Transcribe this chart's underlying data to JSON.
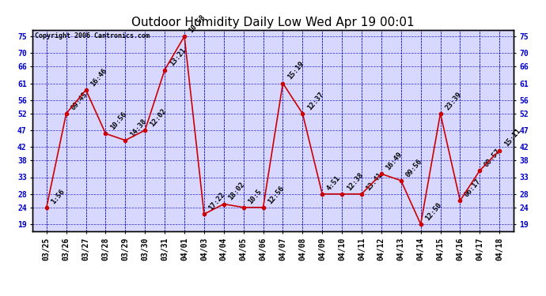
{
  "title": "Outdoor Humidity Daily Low Wed Apr 19 00:01",
  "copyright": "Copyright 2006 Cantronics.com",
  "x_labels": [
    "03/25",
    "03/26",
    "03/27",
    "03/28",
    "03/29",
    "03/30",
    "03/31",
    "04/01",
    "04/03",
    "04/04",
    "04/05",
    "04/06",
    "04/07",
    "04/08",
    "04/09",
    "04/10",
    "04/11",
    "04/12",
    "04/13",
    "04/14",
    "04/15",
    "04/16",
    "04/17",
    "04/18"
  ],
  "y_values": [
    24,
    52,
    59,
    46,
    44,
    47,
    65,
    75,
    22,
    25,
    24,
    24,
    61,
    52,
    28,
    28,
    28,
    34,
    32,
    19,
    52,
    26,
    35,
    41
  ],
  "point_labels": [
    "1:56",
    "09:45",
    "16:46",
    "10:56",
    "14:38",
    "12:02",
    "13:21",
    "10:58",
    "17:22",
    "18:02",
    "10:5",
    "12:56",
    "15:19",
    "12:37",
    "4:51",
    "12:38",
    "13:41",
    "16:49",
    "09:56",
    "12:50",
    "23:39",
    "06:17",
    "00:57",
    "15:11"
  ],
  "ylim_min": 17,
  "ylim_max": 77,
  "yticks": [
    19,
    24,
    28,
    33,
    38,
    42,
    47,
    52,
    56,
    61,
    66,
    70,
    75
  ],
  "line_color": "#cc0000",
  "marker_color": "#cc0000",
  "grid_color": "#0000bb",
  "plot_bg_color": "#d8d8ff",
  "fig_bg_color": "#ffffff",
  "title_fontsize": 11,
  "axis_label_fontsize": 7,
  "point_label_fontsize": 6.5,
  "copyright_fontsize": 6
}
